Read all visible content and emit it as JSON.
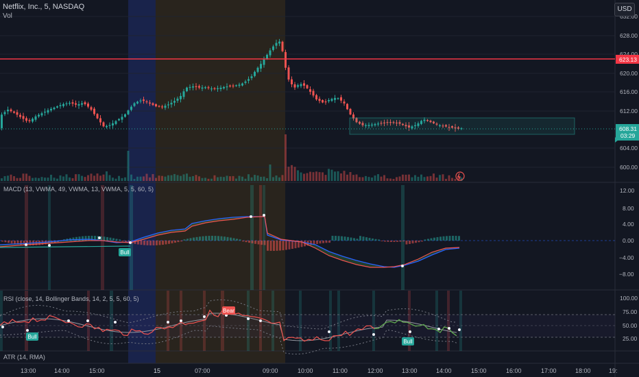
{
  "header": {
    "symbol_title": "Netflix, Inc., 5, NASDAQ",
    "volume_label": "Vol",
    "currency": "USD"
  },
  "price_axis": {
    "ticks": [
      "632.00",
      "628.00",
      "624.00",
      "620.00",
      "616.00",
      "612.00",
      "604.00",
      "600.00"
    ],
    "red_line_label": "623.13",
    "last_price_label": "608.31",
    "countdown_label": "03:29"
  },
  "macd_pane": {
    "title": "MACD (13, VWMA, 49, VWMA, 13, VWMA, 5, 5, 60, 5)",
    "ticks": [
      "12.00",
      "8.00",
      "4.00",
      "0.00",
      "−4.00",
      "−8.00"
    ],
    "bull_label": "Bull"
  },
  "rsi_pane": {
    "title": "RSI (close, 14, Bollinger Bands, 14, 2, 5, 5, 60, 5)",
    "ticks": [
      "100.00",
      "75.00",
      "50.00",
      "25.00"
    ],
    "bull_label_1": "Bull",
    "bull_label_2": "Bull",
    "bear_label": "Bear"
  },
  "atr_pane": {
    "title": "ATR (14, RMA)"
  },
  "time_axis": {
    "labels": [
      "13:00",
      "14:00",
      "15:00",
      "15",
      "07:00",
      "09:00",
      "10:00",
      "11:00",
      "12:00",
      "13:00",
      "14:00",
      "15:00",
      "16:00",
      "17:00",
      "18:00",
      "19:"
    ]
  },
  "colors": {
    "background": "#131722",
    "up": "#26a69a",
    "down": "#ef5350",
    "red_line": "#f23645",
    "blue_session": "#1e2a55",
    "orange_session": "#2a241c"
  }
}
